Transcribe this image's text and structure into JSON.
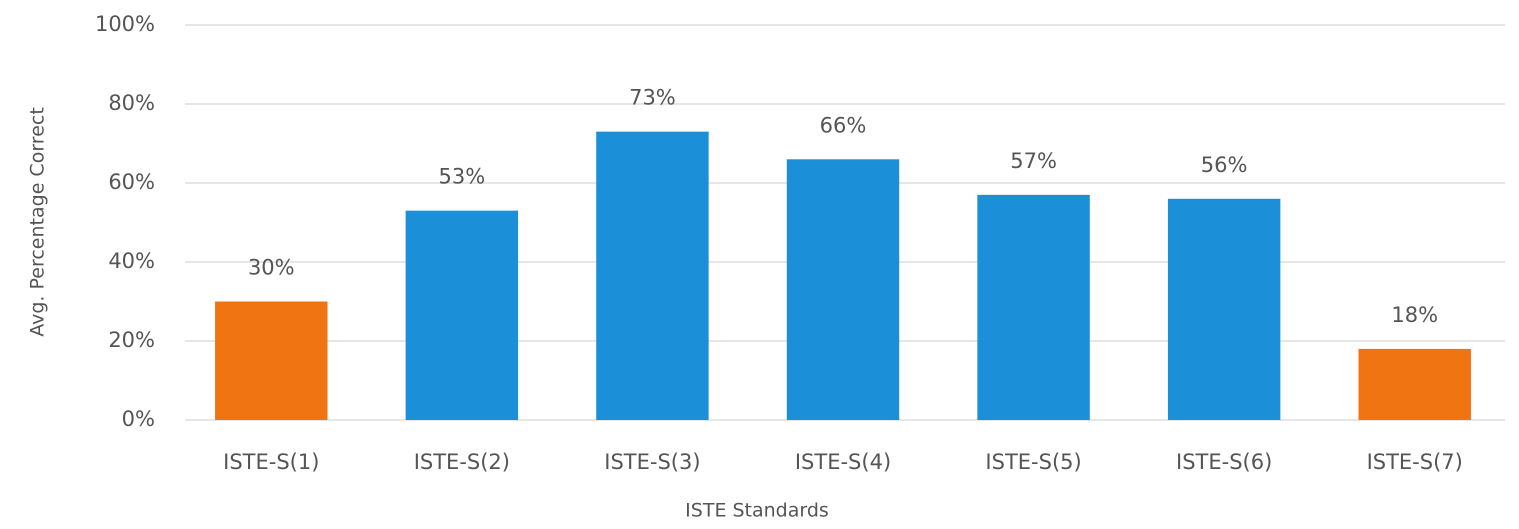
{
  "chart_data": {
    "type": "bar",
    "x_label": "ISTE Standards",
    "y_label": "Avg. Percentage Correct",
    "categories": [
      "ISTE-S(1)",
      "ISTE-S(2)",
      "ISTE-S(3)",
      "ISTE-S(4)",
      "ISTE-S(5)",
      "ISTE-S(6)",
      "ISTE-S(7)"
    ],
    "values": [
      30,
      53,
      73,
      66,
      57,
      56,
      18
    ],
    "value_labels": [
      "30%",
      "53%",
      "73%",
      "66%",
      "57%",
      "56%",
      "18%"
    ],
    "colors": [
      "#f07412",
      "#1b8fd8",
      "#1b8fd8",
      "#1b8fd8",
      "#1b8fd8",
      "#1b8fd8",
      "#f07412"
    ],
    "ylim": [
      0,
      100
    ],
    "yticks": [
      {
        "value": 0,
        "label": "0%"
      },
      {
        "value": 20,
        "label": "20%"
      },
      {
        "value": 40,
        "label": "40%"
      },
      {
        "value": 60,
        "label": "60%"
      },
      {
        "value": 80,
        "label": "80%"
      },
      {
        "value": 100,
        "label": "100%"
      }
    ],
    "grid": true
  }
}
